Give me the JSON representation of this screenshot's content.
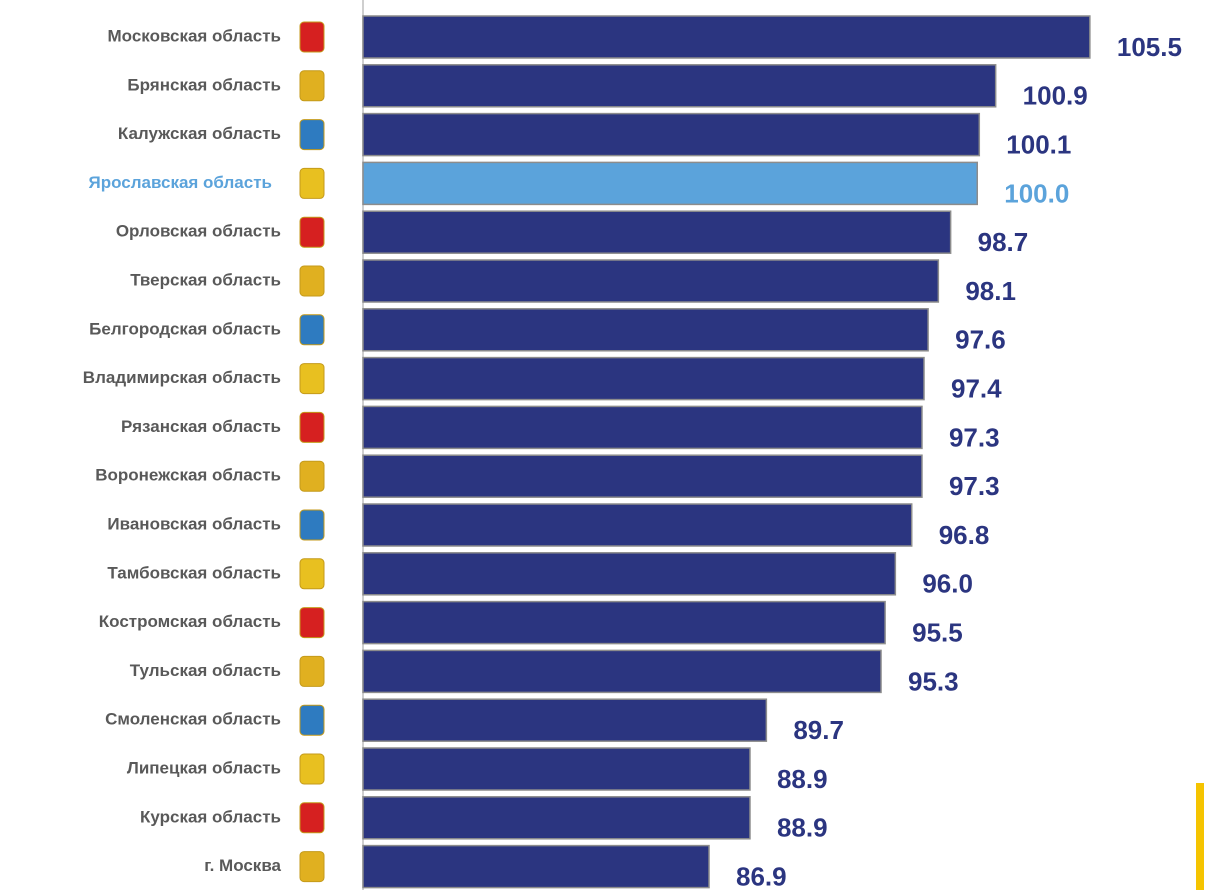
{
  "chart_data": {
    "type": "hbar",
    "categories": [
      "Московская область",
      "Брянская область",
      "Калужская область",
      "Ярославская область",
      "Орловская область",
      "Тверская область",
      "Белгородская область",
      "Владимирская область",
      "Рязанская область",
      "Воронежская область",
      "Ивановская область",
      "Тамбовская область",
      "Костромская область",
      "Тульская область",
      "Смоленская область",
      "Липецкая область",
      "Курская область",
      "г. Москва"
    ],
    "values": [
      105.5,
      100.9,
      100.1,
      100.0,
      98.7,
      98.1,
      97.6,
      97.4,
      97.3,
      97.3,
      96.8,
      96.0,
      95.5,
      95.3,
      89.7,
      88.9,
      88.9,
      86.9
    ],
    "value_labels": [
      "105.5",
      "100.9",
      "100.1",
      "100.0",
      "98.7",
      "98.1",
      "97.6",
      "97.4",
      "97.3",
      "97.3",
      "96.8",
      "96.0",
      "95.5",
      "95.3",
      "89.7",
      "88.9",
      "88.9",
      "86.9"
    ],
    "color": "#2b3580",
    "highlight": {
      "index": 3,
      "color": "#5ba3db"
    },
    "xlim": [
      70,
      110
    ]
  }
}
